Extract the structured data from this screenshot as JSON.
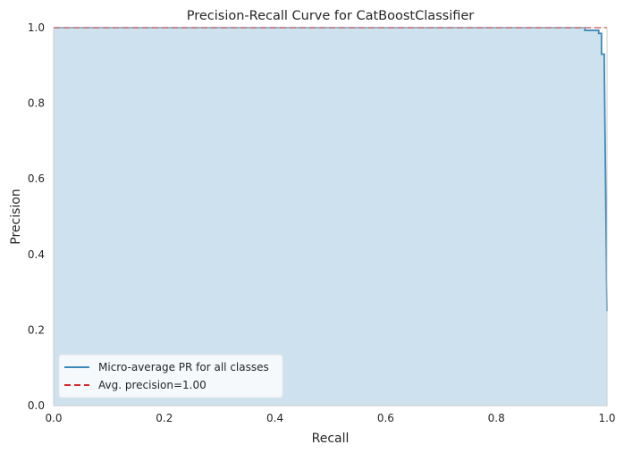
{
  "chart_data": {
    "type": "line",
    "title": "Precision-Recall Curve for CatBoostClassifier",
    "xlabel": "Recall",
    "ylabel": "Precision",
    "xlim": [
      0.0,
      1.0
    ],
    "ylim": [
      0.0,
      1.0
    ],
    "xticks": [
      "0.0",
      "0.2",
      "0.4",
      "0.6",
      "0.8",
      "1.0"
    ],
    "yticks": [
      "0.0",
      "0.2",
      "0.4",
      "0.6",
      "0.8",
      "1.0"
    ],
    "grid": false,
    "legend_position": "lower-left",
    "series": [
      {
        "name": "Micro-average PR for all classes",
        "style": "step-line with filled area",
        "color": "#3a89b8",
        "fill_color": "#cde2ee",
        "x": [
          0.0,
          0.96,
          0.96,
          0.985,
          0.985,
          0.99,
          0.99,
          0.995,
          0.995,
          1.0
        ],
        "y": [
          1.0,
          1.0,
          0.993,
          0.993,
          0.985,
          0.985,
          0.93,
          0.93,
          0.91,
          0.25
        ]
      },
      {
        "name": "Avg. precision=1.00",
        "style": "dashed",
        "color": "#d62728",
        "x": [
          0.0,
          1.0
        ],
        "y": [
          1.0,
          1.0
        ]
      }
    ]
  }
}
